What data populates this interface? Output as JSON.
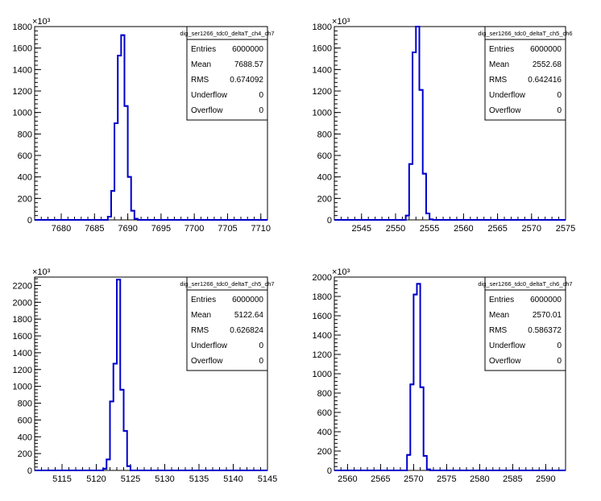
{
  "chart_data": [
    {
      "type": "histogram",
      "title": "dig_ser1266_tdc0_deltaT_ch4_ch7",
      "y_multiplier_label": "×10³",
      "xlim": [
        7676,
        7711
      ],
      "ylim": [
        0,
        1800
      ],
      "x_ticks": [
        "7680",
        "7685",
        "7690",
        "7695",
        "7700",
        "7705",
        "7710"
      ],
      "y_ticks": [
        "0",
        "200",
        "400",
        "600",
        "800",
        "1000",
        "1200",
        "1400",
        "1600",
        "1800"
      ],
      "bins": [
        {
          "x": 7686.5,
          "value": 0
        },
        {
          "x": 7687.0,
          "value": 30
        },
        {
          "x": 7687.5,
          "value": 270
        },
        {
          "x": 7688.0,
          "value": 900
        },
        {
          "x": 7688.5,
          "value": 1530
        },
        {
          "x": 7689.0,
          "value": 1720
        },
        {
          "x": 7689.5,
          "value": 1060
        },
        {
          "x": 7690.0,
          "value": 400
        },
        {
          "x": 7690.5,
          "value": 85
        },
        {
          "x": 7691.0,
          "value": 10
        },
        {
          "x": 7691.5,
          "value": 0
        }
      ],
      "stats": {
        "rows": [
          {
            "label": "Entries",
            "value": "6000000"
          },
          {
            "label": "Mean",
            "value": "7688.57"
          },
          {
            "label": "RMS",
            "value": "0.674092"
          },
          {
            "label": "Underflow",
            "value": "0"
          },
          {
            "label": "Overflow",
            "value": "0"
          }
        ]
      },
      "line_color": "#0000cc"
    },
    {
      "type": "histogram",
      "title": "dig_ser1266_tdc0_deltaT_ch5_ch6",
      "y_multiplier_label": "×10³",
      "xlim": [
        2541,
        2575
      ],
      "ylim": [
        0,
        1800
      ],
      "x_ticks": [
        "2545",
        "2550",
        "2555",
        "2560",
        "2565",
        "2570",
        "2575"
      ],
      "y_ticks": [
        "0",
        "200",
        "400",
        "600",
        "800",
        "1000",
        "1200",
        "1400",
        "1600",
        "1800"
      ],
      "bins": [
        {
          "x": 2551.0,
          "value": 0
        },
        {
          "x": 2551.5,
          "value": 40
        },
        {
          "x": 2552.0,
          "value": 520
        },
        {
          "x": 2552.5,
          "value": 1560
        },
        {
          "x": 2553.0,
          "value": 1800
        },
        {
          "x": 2553.5,
          "value": 1210
        },
        {
          "x": 2554.0,
          "value": 430
        },
        {
          "x": 2554.5,
          "value": 60
        },
        {
          "x": 2555.0,
          "value": 5
        },
        {
          "x": 2555.5,
          "value": 0
        }
      ],
      "stats": {
        "rows": [
          {
            "label": "Entries",
            "value": "6000000"
          },
          {
            "label": "Mean",
            "value": "2552.68"
          },
          {
            "label": "RMS",
            "value": "0.642416"
          },
          {
            "label": "Underflow",
            "value": "0"
          },
          {
            "label": "Overflow",
            "value": "0"
          }
        ]
      },
      "line_color": "#0000cc"
    },
    {
      "type": "histogram",
      "title": "dig_ser1266_tdc0_deltaT_ch5_ch7",
      "y_multiplier_label": "×10³",
      "xlim": [
        5111,
        5145
      ],
      "ylim": [
        0,
        2300
      ],
      "x_ticks": [
        "5115",
        "5120",
        "5125",
        "5130",
        "5135",
        "5140",
        "5145"
      ],
      "y_ticks": [
        "0",
        "200",
        "400",
        "600",
        "800",
        "1000",
        "1200",
        "1400",
        "1600",
        "1800",
        "2000",
        "2200"
      ],
      "bins": [
        {
          "x": 5120.5,
          "value": 0
        },
        {
          "x": 5121.0,
          "value": 20
        },
        {
          "x": 5121.5,
          "value": 130
        },
        {
          "x": 5122.0,
          "value": 820
        },
        {
          "x": 5122.5,
          "value": 1270
        },
        {
          "x": 5123.0,
          "value": 2270
        },
        {
          "x": 5123.5,
          "value": 960
        },
        {
          "x": 5124.0,
          "value": 470
        },
        {
          "x": 5124.5,
          "value": 50
        },
        {
          "x": 5125.0,
          "value": 0
        }
      ],
      "stats": {
        "rows": [
          {
            "label": "Entries",
            "value": "6000000"
          },
          {
            "label": "Mean",
            "value": "5122.64"
          },
          {
            "label": "RMS",
            "value": "0.626824"
          },
          {
            "label": "Underflow",
            "value": "0"
          },
          {
            "label": "Overflow",
            "value": "0"
          }
        ]
      },
      "line_color": "#0000cc"
    },
    {
      "type": "histogram",
      "title": "dig_ser1266_tdc0_deltaT_ch6_ch7",
      "y_multiplier_label": "×10³",
      "xlim": [
        2558,
        2593
      ],
      "ylim": [
        0,
        2000
      ],
      "x_ticks": [
        "2560",
        "2565",
        "2570",
        "2575",
        "2580",
        "2585",
        "2590"
      ],
      "y_ticks": [
        "0",
        "200",
        "400",
        "600",
        "800",
        "1000",
        "1200",
        "1400",
        "1600",
        "1800",
        "2000"
      ],
      "bins": [
        {
          "x": 2568.5,
          "value": 0
        },
        {
          "x": 2569.0,
          "value": 160
        },
        {
          "x": 2569.5,
          "value": 890
        },
        {
          "x": 2570.0,
          "value": 1820
        },
        {
          "x": 2570.5,
          "value": 1930
        },
        {
          "x": 2571.0,
          "value": 860
        },
        {
          "x": 2571.5,
          "value": 150
        },
        {
          "x": 2572.0,
          "value": 10
        },
        {
          "x": 2572.5,
          "value": 0
        }
      ],
      "stats": {
        "rows": [
          {
            "label": "Entries",
            "value": "6000000"
          },
          {
            "label": "Mean",
            "value": "2570.01"
          },
          {
            "label": "RMS",
            "value": "0.586372"
          },
          {
            "label": "Underflow",
            "value": "0"
          },
          {
            "label": "Overflow",
            "value": "0"
          }
        ]
      },
      "line_color": "#0000cc"
    }
  ]
}
